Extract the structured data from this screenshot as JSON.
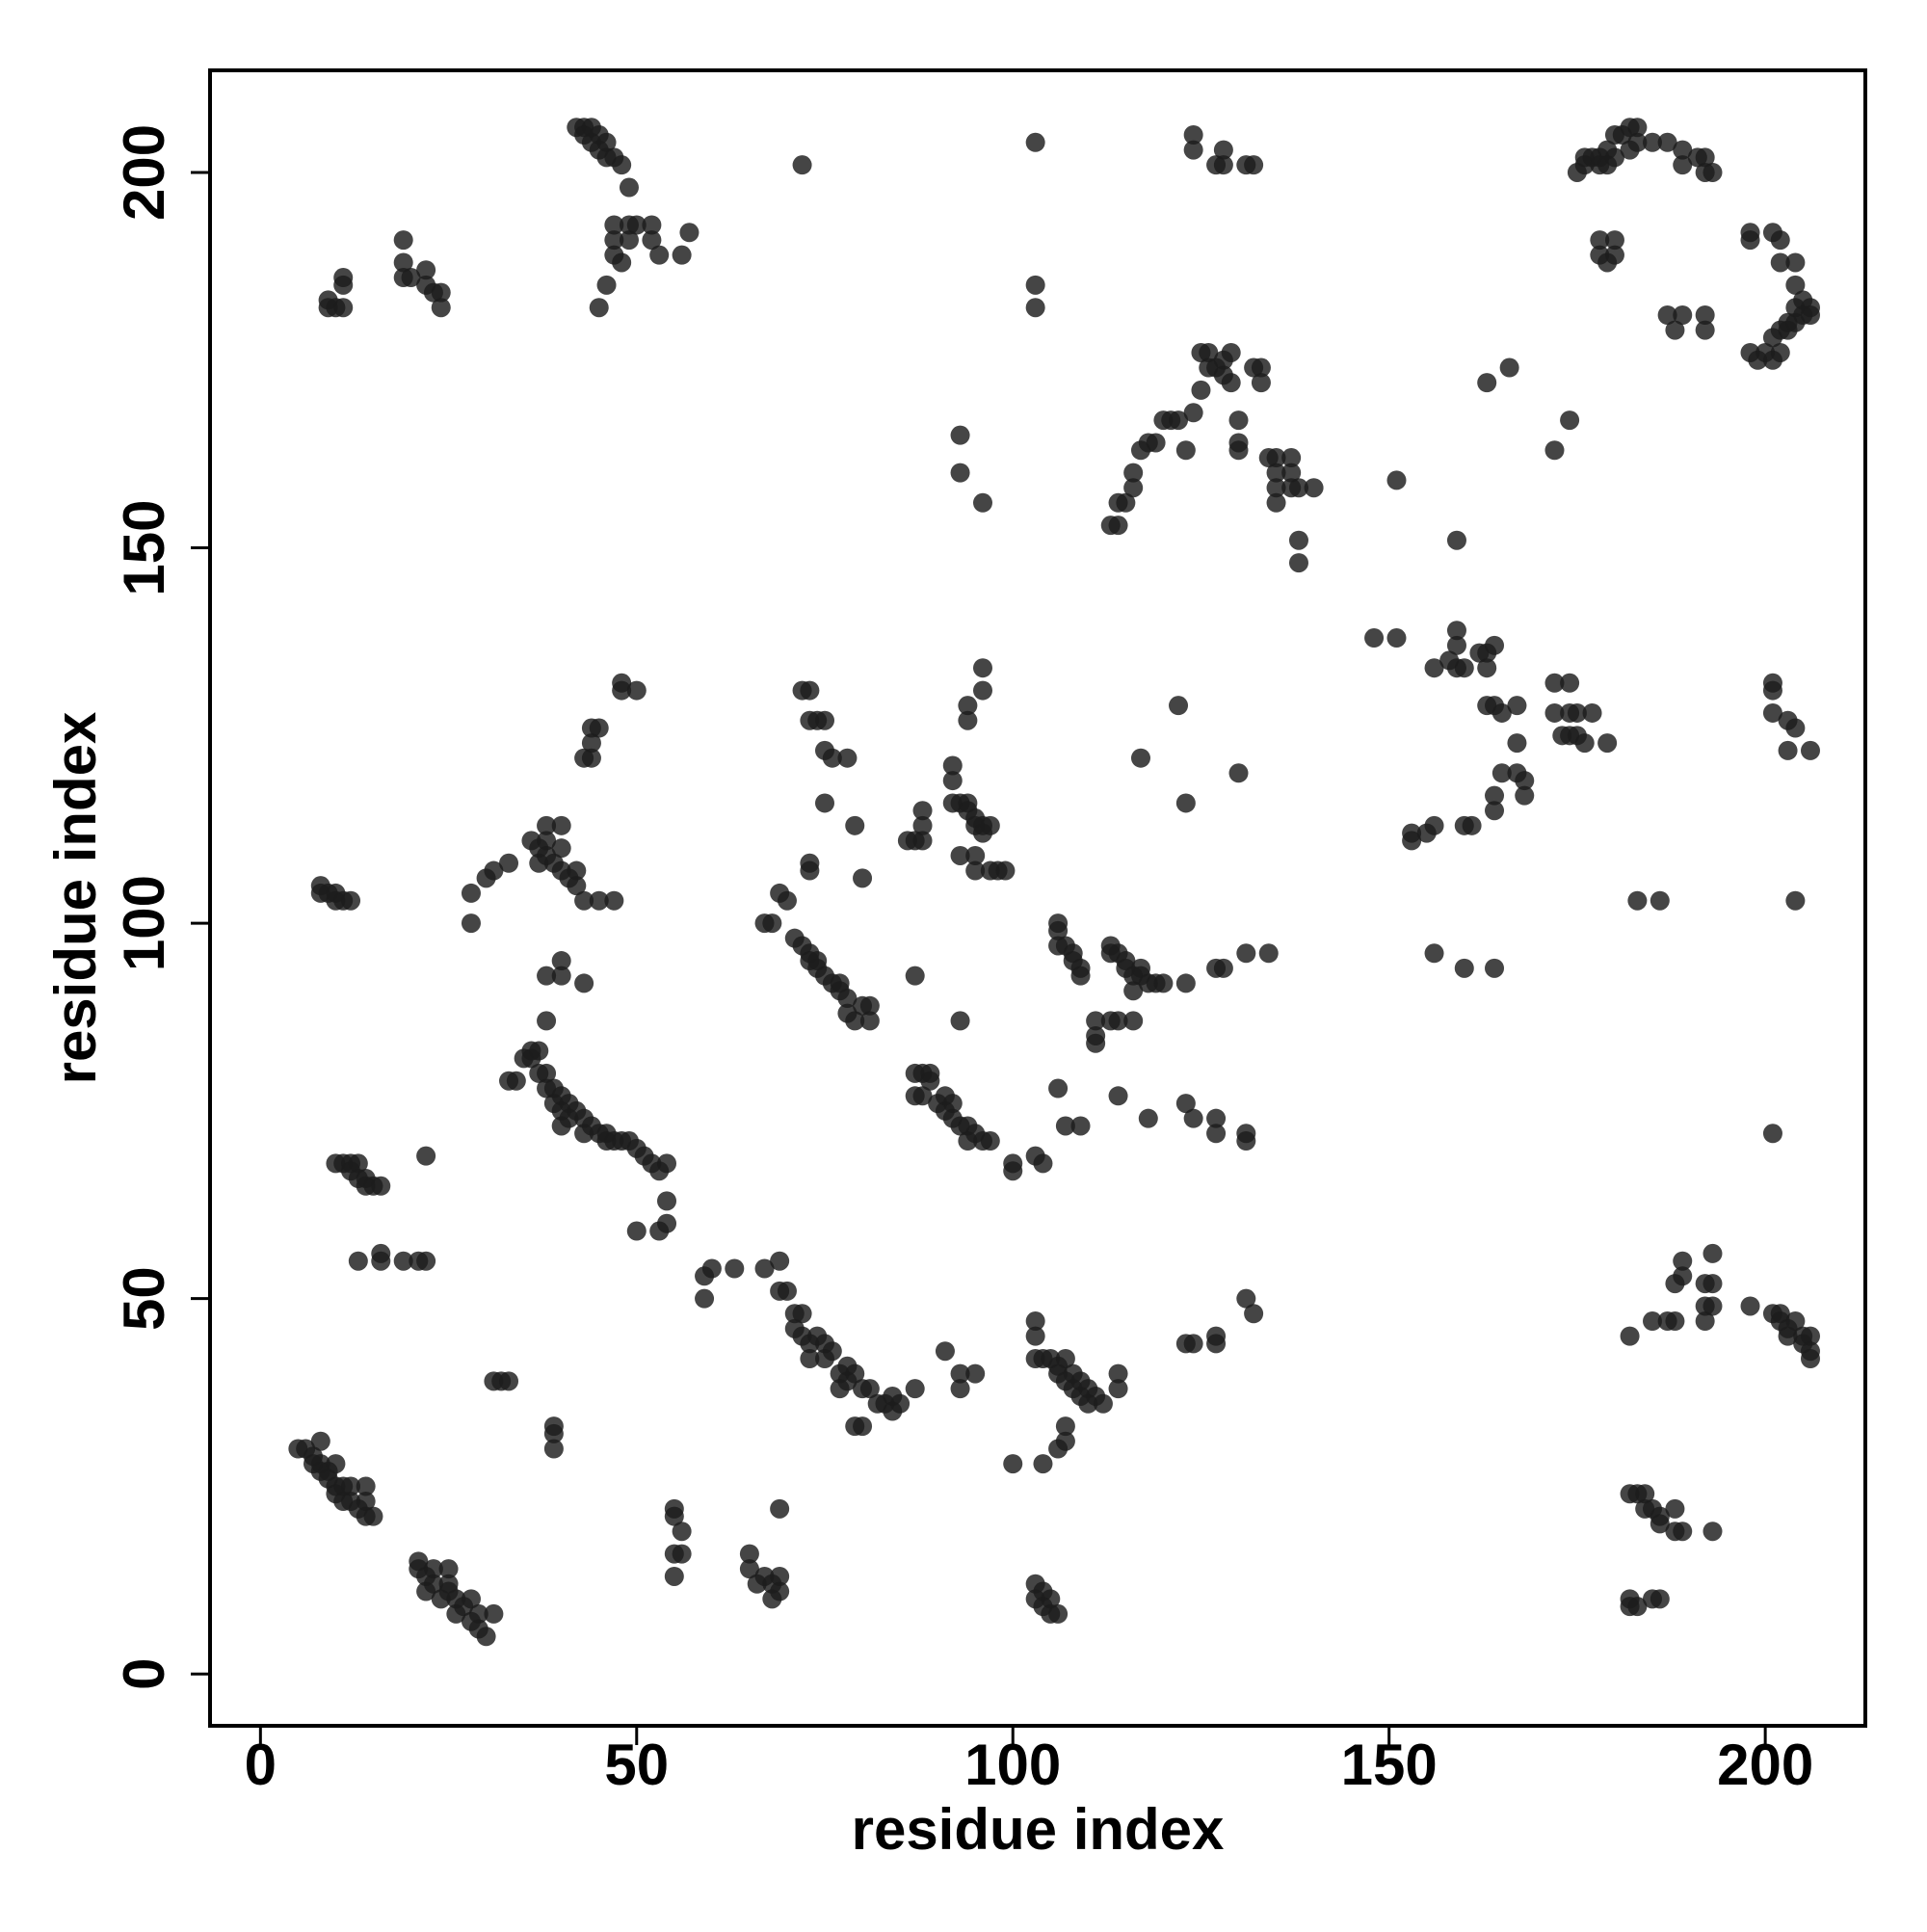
{
  "chart_data": {
    "type": "scatter",
    "xlabel": "residue index",
    "ylabel": "residue index",
    "xlim": [
      -6.7,
      213.3
    ],
    "ylim": [
      -6.9,
      213.6
    ],
    "xticks": [
      0,
      50,
      100,
      150,
      200
    ],
    "yticks": [
      0,
      50,
      100,
      150,
      200
    ],
    "grid": false,
    "series": [
      {
        "color": "#1c1c1c",
        "x": [
          5,
          6,
          7,
          7,
          8,
          8,
          8,
          9,
          9,
          10,
          10,
          10,
          11,
          11,
          12,
          12,
          13,
          14,
          14,
          15,
          14,
          21,
          21,
          22,
          22,
          23,
          23,
          24,
          25,
          25,
          25,
          26,
          26,
          27,
          28,
          28,
          29,
          29,
          30,
          31,
          31,
          32,
          33,
          39,
          39,
          39,
          55,
          55,
          56,
          56,
          55,
          55,
          65,
          65,
          66,
          67,
          68,
          68,
          69,
          69,
          69,
          103,
          103,
          104,
          104,
          105,
          105,
          106,
          100,
          104,
          106,
          107,
          107,
          182,
          183,
          184,
          184,
          185,
          186,
          186,
          188,
          188,
          189,
          193,
          182,
          182,
          183,
          185,
          186,
          59,
          59,
          60,
          63,
          67,
          69,
          69,
          70,
          71,
          71,
          72,
          72,
          73,
          73,
          74,
          75,
          75,
          76,
          77,
          77,
          78,
          78,
          79,
          79,
          80,
          80,
          81,
          82,
          83,
          84,
          84,
          85,
          87,
          22,
          10,
          11,
          12,
          12,
          13,
          13,
          14,
          14,
          15,
          16,
          13,
          16,
          16,
          19,
          21,
          22,
          33,
          34,
          35,
          36,
          36,
          37,
          37,
          38,
          38,
          39,
          39,
          40,
          40,
          41,
          41,
          42,
          43,
          43,
          44,
          45,
          46,
          46,
          47,
          48,
          49,
          50,
          51,
          52,
          53,
          54,
          54,
          54,
          53,
          50,
          40,
          38,
          40,
          40,
          38,
          43,
          28,
          28,
          30,
          31,
          33,
          36,
          37,
          37,
          38,
          38,
          39,
          40,
          40,
          41,
          42,
          42,
          43,
          40,
          38,
          45,
          47,
          8,
          8,
          9,
          10,
          10,
          11,
          12,
          43,
          44,
          44,
          44,
          45,
          48,
          48,
          50,
          72,
          73,
          73,
          74,
          75,
          75,
          76,
          78,
          73,
          73,
          75,
          79,
          80,
          69,
          70,
          67,
          68,
          71,
          72,
          73,
          73,
          74,
          74,
          75,
          76,
          77,
          77,
          78,
          78,
          79,
          80,
          81,
          81,
          87,
          86,
          87,
          88,
          88,
          88,
          92,
          92,
          92,
          93,
          94,
          94,
          95,
          95,
          96,
          96,
          97,
          95,
          93,
          95,
          97,
          98,
          99,
          94,
          94,
          96,
          96,
          87,
          88,
          89,
          87,
          88,
          89,
          90,
          91,
          91,
          92,
          92,
          93,
          94,
          94,
          95,
          96,
          97,
          100,
          100,
          103,
          104,
          93,
          91,
          93,
          93,
          95,
          103,
          103,
          103,
          104,
          105,
          106,
          106,
          107,
          107,
          108,
          108,
          109,
          109,
          110,
          110,
          111,
          112,
          114,
          114,
          106,
          107,
          109,
          106,
          106,
          107,
          106,
          108,
          108,
          109,
          109,
          111,
          111,
          111,
          113,
          113,
          114,
          115,
          115,
          116,
          116,
          117,
          117,
          118,
          119,
          120,
          123,
          113,
          114,
          116,
          114,
          118,
          123,
          124,
          127,
          127,
          131,
          131,
          127,
          128,
          131,
          134,
          123,
          124,
          127,
          127,
          131,
          132,
          117,
          122,
          123,
          130,
          113,
          114,
          114,
          115,
          116,
          116,
          117,
          118,
          119,
          120,
          121,
          122,
          123,
          124,
          125,
          125,
          126,
          126,
          127,
          128,
          128,
          129,
          129,
          130,
          130,
          130,
          132,
          133,
          133,
          134,
          135,
          135,
          135,
          135,
          137,
          137,
          137,
          138,
          140,
          138,
          138,
          124,
          124,
          127,
          128,
          128,
          131,
          132,
          93,
          93,
          96,
          103,
          103,
          103,
          72,
          42,
          43,
          43,
          44,
          44,
          45,
          45,
          46,
          46,
          47,
          48,
          49,
          47,
          47,
          47,
          48,
          49,
          49,
          50,
          52,
          52,
          53,
          56,
          57,
          46,
          45,
          9,
          9,
          10,
          11,
          11,
          11,
          19,
          19,
          19,
          20,
          22,
          22,
          23,
          24,
          24,
          148,
          151,
          151,
          153,
          153,
          155,
          156,
          156,
          156,
          158,
          159,
          159,
          159,
          160,
          160,
          160,
          161,
          162,
          163,
          163,
          163,
          164,
          164,
          164,
          164,
          164,
          165,
          165,
          167,
          167,
          167,
          168,
          168,
          159,
          163,
          166,
          172,
          172,
          172,
          173,
          174,
          174,
          174,
          175,
          175,
          176,
          177,
          179,
          174,
          183,
          186,
          175,
          176,
          176,
          177,
          178,
          178,
          179,
          179,
          180,
          180,
          181,
          182,
          182,
          183,
          183,
          185,
          187,
          189,
          189,
          191,
          192,
          192,
          193,
          178,
          178,
          179,
          180,
          180,
          187,
          188,
          189,
          192,
          192,
          198,
          198,
          198,
          199,
          200,
          201,
          201,
          202,
          202,
          203,
          203,
          204,
          204,
          205,
          205,
          206,
          206,
          201,
          202,
          202,
          204,
          204,
          201,
          201,
          201,
          203,
          203,
          204,
          206,
          204,
          201,
          182,
          185,
          187,
          188,
          188,
          189,
          189,
          192,
          192,
          192,
          193,
          193,
          193,
          198,
          201,
          202,
          202,
          203,
          203,
          204,
          205,
          205,
          206,
          206,
          206
        ],
        "values": [
          30,
          30,
          29,
          28,
          31,
          28,
          27,
          27,
          26,
          28,
          25,
          24,
          25,
          23,
          25,
          23,
          22,
          23,
          25,
          21,
          21,
          15,
          14,
          13,
          11,
          14,
          12,
          10,
          14,
          12,
          11,
          10,
          8,
          9,
          10,
          7,
          8,
          6,
          5,
          8,
          39,
          39,
          39,
          33,
          32,
          30,
          22,
          21,
          19,
          16,
          13,
          16,
          16,
          14,
          12,
          13,
          12,
          10,
          11,
          13,
          22,
          12,
          10,
          11,
          9,
          10,
          8,
          8,
          28,
          28,
          30,
          31,
          33,
          24,
          24,
          24,
          22,
          22,
          20,
          21,
          22,
          19,
          19,
          19,
          10,
          9,
          9,
          10,
          10,
          53,
          50,
          54,
          54,
          54,
          55,
          51,
          51,
          48,
          46,
          48,
          45,
          44,
          42,
          45,
          44,
          42,
          43,
          40,
          38,
          41,
          39,
          40,
          33,
          38,
          33,
          38,
          36,
          36,
          37,
          35,
          36,
          38,
          69,
          68,
          68,
          68,
          67,
          66,
          68,
          66,
          65,
          65,
          65,
          55,
          56,
          55,
          55,
          55,
          55,
          79,
          79,
          82,
          83,
          82,
          83,
          80,
          80,
          78,
          78,
          76,
          77,
          75,
          76,
          74,
          75,
          74,
          72,
          73,
          72,
          72,
          71,
          71,
          71,
          71,
          70,
          69,
          68,
          67,
          68,
          63,
          60,
          59,
          59,
          73,
          87,
          95,
          93,
          93,
          92,
          104,
          100,
          106,
          107,
          108,
          111,
          110,
          108,
          111,
          109,
          108,
          110,
          107,
          106,
          107,
          105,
          103,
          113,
          113,
          103,
          103,
          105,
          104,
          104,
          104,
          103,
          103,
          103,
          122,
          122,
          124,
          126,
          126,
          131,
          132,
          131,
          131,
          131,
          127,
          127,
          127,
          123,
          122,
          122,
          108,
          107,
          116,
          113,
          106,
          104,
          103,
          100,
          100,
          98,
          97,
          96,
          95,
          95,
          94,
          93,
          92,
          92,
          91,
          90,
          88,
          87,
          89,
          89,
          87,
          93,
          111,
          111,
          111,
          113,
          115,
          116,
          119,
          121,
          116,
          116,
          115,
          114,
          113,
          113,
          112,
          113,
          109,
          109,
          107,
          107,
          107,
          107,
          127,
          129,
          131,
          134,
          80,
          80,
          80,
          77,
          77,
          79,
          76,
          77,
          75,
          76,
          74,
          73,
          73,
          71,
          72,
          71,
          71,
          68,
          67,
          69,
          68,
          87,
          43,
          40,
          38,
          40,
          47,
          45,
          42,
          42,
          42,
          41,
          40,
          39,
          42,
          38,
          40,
          39,
          37,
          38,
          36,
          37,
          36,
          38,
          40,
          78,
          73,
          73,
          100,
          99,
          97,
          97,
          96,
          95,
          94,
          93,
          84,
          85,
          87,
          96,
          97,
          96,
          95,
          94,
          93,
          91,
          94,
          93,
          92,
          92,
          92,
          92,
          87,
          87,
          87,
          77,
          74,
          76,
          74,
          74,
          72,
          72,
          71,
          94,
          94,
          96,
          96,
          44,
          44,
          44,
          45,
          50,
          48,
          122,
          129,
          116,
          120,
          153,
          153,
          156,
          156,
          158,
          160,
          163,
          164,
          164,
          167,
          167,
          167,
          163,
          168,
          171,
          176,
          176,
          174,
          174,
          175,
          173,
          176,
          172,
          167,
          164,
          163,
          174,
          174,
          172,
          162,
          162,
          160,
          158,
          156,
          162,
          160,
          158,
          158,
          158,
          151,
          148,
          203,
          205,
          201,
          203,
          201,
          201,
          201,
          165,
          160,
          156,
          204,
          185,
          182,
          201,
          206,
          206,
          205,
          204,
          206,
          205,
          203,
          204,
          202,
          202,
          201,
          198,
          193,
          191,
          189,
          188,
          193,
          191,
          193,
          193,
          191,
          189,
          189,
          192,
          185,
          182,
          183,
          182,
          182,
          182,
          185,
          186,
          191,
          188,
          186,
          186,
          187,
          185,
          184,
          184,
          182,
          138,
          138,
          159,
          112,
          111,
          112,
          113,
          134,
          96,
          135,
          137,
          139,
          134,
          134,
          113,
          94,
          113,
          136,
          136,
          134,
          129,
          129,
          137,
          117,
          115,
          94,
          120,
          128,
          129,
          124,
          120,
          119,
          117,
          151,
          172,
          174,
          163,
          132,
          128,
          125,
          132,
          128,
          125,
          128,
          125,
          124,
          128,
          124,
          167,
          103,
          103,
          200,
          201,
          202,
          202,
          202,
          201,
          203,
          201,
          202,
          205,
          205,
          203,
          206,
          204,
          206,
          204,
          204,
          201,
          203,
          202,
          200,
          202,
          200,
          191,
          189,
          188,
          189,
          191,
          181,
          179,
          181,
          179,
          181,
          192,
          191,
          176,
          175,
          176,
          175,
          178,
          176,
          179,
          179,
          180,
          182,
          180,
          181,
          183,
          182,
          181,
          192,
          191,
          188,
          188,
          185,
          131,
          132,
          128,
          127,
          123,
          126,
          123,
          103,
          72,
          45,
          47,
          47,
          47,
          52,
          53,
          55,
          47,
          49,
          52,
          49,
          52,
          56,
          49,
          48,
          48,
          47,
          46,
          45,
          47,
          44,
          45,
          45,
          43,
          42
        ]
      }
    ]
  }
}
